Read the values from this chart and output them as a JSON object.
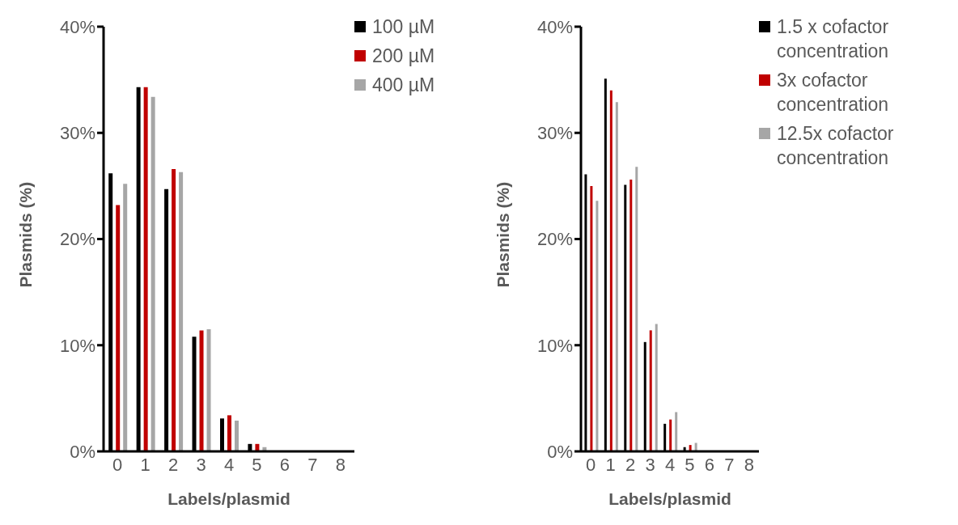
{
  "chart_data": [
    {
      "type": "bar",
      "xlabel": "Labels/plasmid",
      "ylabel": "Plasmids (%)",
      "categories": [
        "0",
        "1",
        "2",
        "3",
        "4",
        "5",
        "6",
        "7",
        "8"
      ],
      "series": [
        {
          "name": "100 µM",
          "color": "#000000",
          "values": [
            26.2,
            34.3,
            24.7,
            10.8,
            3.1,
            0.7,
            0,
            0,
            0
          ]
        },
        {
          "name": "200 µM",
          "color": "#c00000",
          "values": [
            23.2,
            34.3,
            26.6,
            11.4,
            3.4,
            0.7,
            0,
            0,
            0
          ]
        },
        {
          "name": "400 µM",
          "color": "#a6a6a6",
          "values": [
            25.2,
            33.4,
            26.3,
            11.5,
            2.9,
            0.4,
            0,
            0,
            0
          ]
        }
      ],
      "ylim": [
        0,
        40
      ],
      "yticks": [
        {
          "value": 0,
          "label": "0%"
        },
        {
          "value": 10,
          "label": "10%"
        },
        {
          "value": 20,
          "label": "20%"
        },
        {
          "value": 30,
          "label": "30%"
        },
        {
          "value": 40,
          "label": "40%"
        }
      ],
      "grid": false,
      "legend": "top right"
    },
    {
      "type": "bar",
      "xlabel": "Labels/plasmid",
      "ylabel": "Plasmids (%)",
      "categories": [
        "0",
        "1",
        "2",
        "3",
        "4",
        "5",
        "6",
        "7",
        "8"
      ],
      "series": [
        {
          "name": "1.5 x cofactor concentration",
          "color": "#000000",
          "values": [
            26.1,
            35.1,
            25.1,
            10.3,
            2.6,
            0.4,
            0,
            0,
            0
          ]
        },
        {
          "name": "3x cofactor concentration",
          "color": "#c00000",
          "values": [
            25.0,
            34.0,
            25.6,
            11.4,
            3.0,
            0.6,
            0,
            0,
            0
          ]
        },
        {
          "name": "12.5x cofactor concentration",
          "color": "#a6a6a6",
          "values": [
            23.6,
            32.9,
            26.8,
            12.0,
            3.7,
            0.8,
            0,
            0,
            0
          ]
        }
      ],
      "ylim": [
        0,
        40
      ],
      "yticks": [
        {
          "value": 0,
          "label": "0%"
        },
        {
          "value": 10,
          "label": "10%"
        },
        {
          "value": 20,
          "label": "20%"
        },
        {
          "value": 30,
          "label": "30%"
        },
        {
          "value": 40,
          "label": "40%"
        }
      ],
      "grid": false,
      "legend": "top right"
    }
  ]
}
